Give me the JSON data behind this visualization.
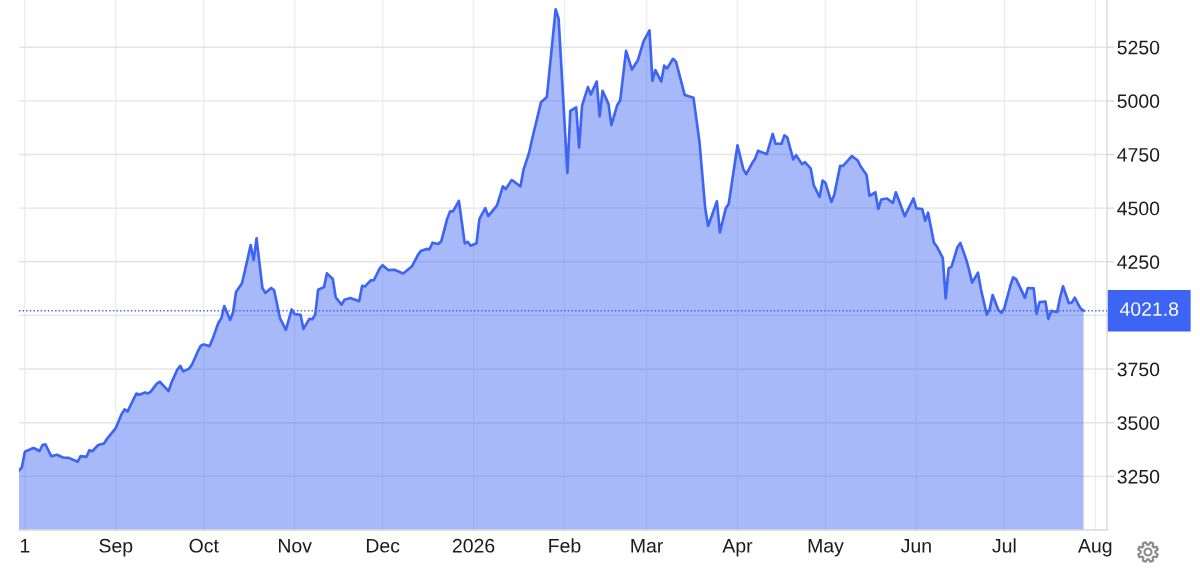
{
  "chart_data": {
    "type": "area",
    "x": [
      "2025-07-30",
      "2025-07-31",
      "2025-08-01",
      "2025-08-03",
      "2025-08-04",
      "2025-08-06",
      "2025-08-07",
      "2025-08-08",
      "2025-08-10",
      "2025-08-12",
      "2025-08-14",
      "2025-08-16",
      "2025-08-19",
      "2025-08-20",
      "2025-08-22",
      "2025-08-23",
      "2025-08-24",
      "2025-08-26",
      "2025-08-28",
      "2025-08-29",
      "2025-09-01",
      "2025-09-03",
      "2025-09-04",
      "2025-09-05",
      "2025-09-08",
      "2025-09-09",
      "2025-09-11",
      "2025-09-12",
      "2025-09-13",
      "2025-09-15",
      "2025-09-16",
      "2025-09-18",
      "2025-09-19",
      "2025-09-20",
      "2025-09-22",
      "2025-09-23",
      "2025-09-24",
      "2025-09-26",
      "2025-09-27",
      "2025-09-29",
      "2025-09-30",
      "2025-10-01",
      "2025-10-03",
      "2025-10-04",
      "2025-10-06",
      "2025-10-07",
      "2025-10-08",
      "2025-10-10",
      "2025-10-11",
      "2025-10-12",
      "2025-10-14",
      "2025-10-15",
      "2025-10-17",
      "2025-10-18",
      "2025-10-19",
      "2025-10-21",
      "2025-10-22",
      "2025-10-24",
      "2025-10-25",
      "2025-10-27",
      "2025-10-29",
      "2025-10-31",
      "2025-11-01",
      "2025-11-03",
      "2025-11-04",
      "2025-11-06",
      "2025-11-07",
      "2025-11-08",
      "2025-11-09",
      "2025-11-11",
      "2025-11-12",
      "2025-11-14",
      "2025-11-15",
      "2025-11-17",
      "2025-11-18",
      "2025-11-20",
      "2025-11-23",
      "2025-11-24",
      "2025-11-25",
      "2025-11-27",
      "2025-11-28",
      "2025-11-30",
      "2025-12-01",
      "2025-12-03",
      "2025-12-05",
      "2025-12-08",
      "2025-12-11",
      "2025-12-13",
      "2025-12-14",
      "2025-12-16",
      "2025-12-17",
      "2025-12-18",
      "2025-12-20",
      "2025-12-21",
      "2025-12-23",
      "2025-12-24",
      "2025-12-25",
      "2025-12-27",
      "2025-12-29",
      "2025-12-30",
      "2025-12-31",
      "2026-01-02",
      "2026-01-03",
      "2026-01-05",
      "2026-01-06",
      "2026-01-09",
      "2026-01-11",
      "2026-01-12",
      "2026-01-14",
      "2026-01-15",
      "2026-01-17",
      "2026-01-18",
      "2026-01-20",
      "2026-01-21",
      "2026-01-23",
      "2026-01-24",
      "2026-01-26",
      "2026-01-29",
      "2026-01-30",
      "2026-02-02",
      "2026-02-03",
      "2026-02-05",
      "2026-02-06",
      "2026-02-07",
      "2026-02-09",
      "2026-02-10",
      "2026-02-12",
      "2026-02-13",
      "2026-02-14",
      "2026-02-16",
      "2026-02-17",
      "2026-02-19",
      "2026-02-20",
      "2026-02-22",
      "2026-02-24",
      "2026-02-26",
      "2026-02-28",
      "2026-03-02",
      "2026-03-03",
      "2026-03-04",
      "2026-03-06",
      "2026-03-07",
      "2026-03-08",
      "2026-03-10",
      "2026-03-11",
      "2026-03-13",
      "2026-03-14",
      "2026-03-17",
      "2026-03-19",
      "2026-03-21",
      "2026-03-22",
      "2026-03-25",
      "2026-03-26",
      "2026-03-28",
      "2026-03-29",
      "2026-04-01",
      "2026-04-03",
      "2026-04-04",
      "2026-04-06",
      "2026-04-07",
      "2026-04-08",
      "2026-04-11",
      "2026-04-13",
      "2026-04-14",
      "2026-04-16",
      "2026-04-17",
      "2026-04-18",
      "2026-04-20",
      "2026-04-21",
      "2026-04-23",
      "2026-04-24",
      "2026-04-26",
      "2026-04-27",
      "2026-04-29",
      "2026-04-30",
      "2026-05-01",
      "2026-05-03",
      "2026-05-04",
      "2026-05-06",
      "2026-05-07",
      "2026-05-09",
      "2026-05-10",
      "2026-05-12",
      "2026-05-13",
      "2026-05-15",
      "2026-05-16",
      "2026-05-18",
      "2026-05-19",
      "2026-05-20",
      "2026-05-22",
      "2026-05-24",
      "2026-05-25",
      "2026-05-28",
      "2026-05-31",
      "2026-06-01",
      "2026-06-03",
      "2026-06-04",
      "2026-06-05",
      "2026-06-07",
      "2026-06-08",
      "2026-06-10",
      "2026-06-11",
      "2026-06-12",
      "2026-06-13",
      "2026-06-15",
      "2026-06-16",
      "2026-06-18",
      "2026-06-19",
      "2026-06-20",
      "2026-06-22",
      "2026-06-23",
      "2026-06-25",
      "2026-06-26",
      "2026-06-27",
      "2026-06-29",
      "2026-06-30",
      "2026-07-01",
      "2026-07-03",
      "2026-07-04",
      "2026-07-05",
      "2026-07-07",
      "2026-07-08",
      "2026-07-09",
      "2026-07-11",
      "2026-07-12",
      "2026-07-13",
      "2026-07-15",
      "2026-07-16",
      "2026-07-17",
      "2026-07-19",
      "2026-07-20",
      "2026-07-21",
      "2026-07-23",
      "2026-07-24",
      "2026-07-25",
      "2026-07-27",
      "2026-07-28"
    ],
    "series": [
      {
        "color": "#3d64f4",
        "values": [
          3278,
          3292,
          3365,
          3377,
          3382,
          3368,
          3396,
          3399,
          3344,
          3351,
          3338,
          3336,
          3318,
          3344,
          3341,
          3372,
          3367,
          3396,
          3403,
          3425,
          3475,
          3541,
          3562,
          3552,
          3636,
          3630,
          3641,
          3636,
          3646,
          3682,
          3691,
          3662,
          3648,
          3687,
          3748,
          3765,
          3739,
          3752,
          3771,
          3833,
          3859,
          3865,
          3857,
          3890,
          3966,
          3987,
          4044,
          3979,
          4015,
          4109,
          4149,
          4206,
          4328,
          4258,
          4359,
          4128,
          4105,
          4128,
          4117,
          3987,
          3933,
          4028,
          4006,
          4003,
          3937,
          3984,
          3982,
          4003,
          4120,
          4132,
          4196,
          4170,
          4084,
          4050,
          4073,
          4081,
          4066,
          4138,
          4135,
          4164,
          4164,
          4219,
          4234,
          4211,
          4213,
          4195,
          4229,
          4281,
          4300,
          4310,
          4308,
          4339,
          4333,
          4346,
          4450,
          4485,
          4485,
          4534,
          4336,
          4343,
          4325,
          4336,
          4450,
          4500,
          4463,
          4513,
          4601,
          4589,
          4631,
          4622,
          4601,
          4677,
          4761,
          4823,
          4937,
          4994,
          5018,
          5427,
          5383,
          4664,
          4953,
          4970,
          4783,
          4978,
          5064,
          5030,
          5090,
          4928,
          5047,
          4986,
          4887,
          4981,
          5002,
          5233,
          5146,
          5189,
          5278,
          5328,
          5093,
          5143,
          5090,
          5164,
          5151,
          5196,
          5184,
          5080,
          5027,
          5014,
          4813,
          4499,
          4417,
          4532,
          4387,
          4499,
          4519,
          4793,
          4681,
          4658,
          4710,
          4730,
          4767,
          4752,
          4846,
          4800,
          4800,
          4839,
          4829,
          4727,
          4747,
          4705,
          4714,
          4684,
          4607,
          4552,
          4628,
          4618,
          4529,
          4562,
          4697,
          4697,
          4727,
          4743,
          4722,
          4694,
          4656,
          4557,
          4574,
          4496,
          4540,
          4545,
          4524,
          4574,
          4463,
          4545,
          4499,
          4496,
          4441,
          4479,
          4338,
          4321,
          4268,
          4079,
          4219,
          4227,
          4318,
          4338,
          4260,
          4211,
          4153,
          4199,
          4123,
          4004,
          4029,
          4095,
          4024,
          4012,
          4034,
          4136,
          4178,
          4169,
          4112,
          4082,
          4128,
          4126,
          4008,
          4062,
          4065,
          3984,
          4021,
          4016,
          4083,
          4136,
          4057,
          4060,
          4083,
          4032,
          4022
        ]
      }
    ],
    "xlim": [
      "2025-07-30",
      "2026-08-05"
    ],
    "xticks": [
      {
        "value": "2025-08-01",
        "label": "1"
      },
      {
        "value": "2025-09-01",
        "label": "Sep"
      },
      {
        "value": "2025-10-01",
        "label": "Oct"
      },
      {
        "value": "2025-11-01",
        "label": "Nov"
      },
      {
        "value": "2025-12-01",
        "label": "Dec"
      },
      {
        "value": "2026-01-01",
        "label": "2026"
      },
      {
        "value": "2026-02-01",
        "label": "Feb"
      },
      {
        "value": "2026-03-01",
        "label": "Mar"
      },
      {
        "value": "2026-04-01",
        "label": "Apr"
      },
      {
        "value": "2026-05-01",
        "label": "May"
      },
      {
        "value": "2026-06-01",
        "label": "Jun"
      },
      {
        "value": "2026-07-01",
        "label": "Jul"
      },
      {
        "value": "2026-08-01",
        "label": "Aug"
      }
    ],
    "ylim": [
      3000,
      5470
    ],
    "yticks": [
      3250,
      3500,
      3750,
      {
        "value": 4000,
        "label": null
      },
      4250,
      4500,
      4750,
      5000,
      5250
    ],
    "grid": true,
    "ref_lines": [
      {
        "axis": "y",
        "value": 4021.8,
        "label": "4021.8",
        "color": "#3d64f4",
        "line_style": "dotted"
      }
    ]
  }
}
